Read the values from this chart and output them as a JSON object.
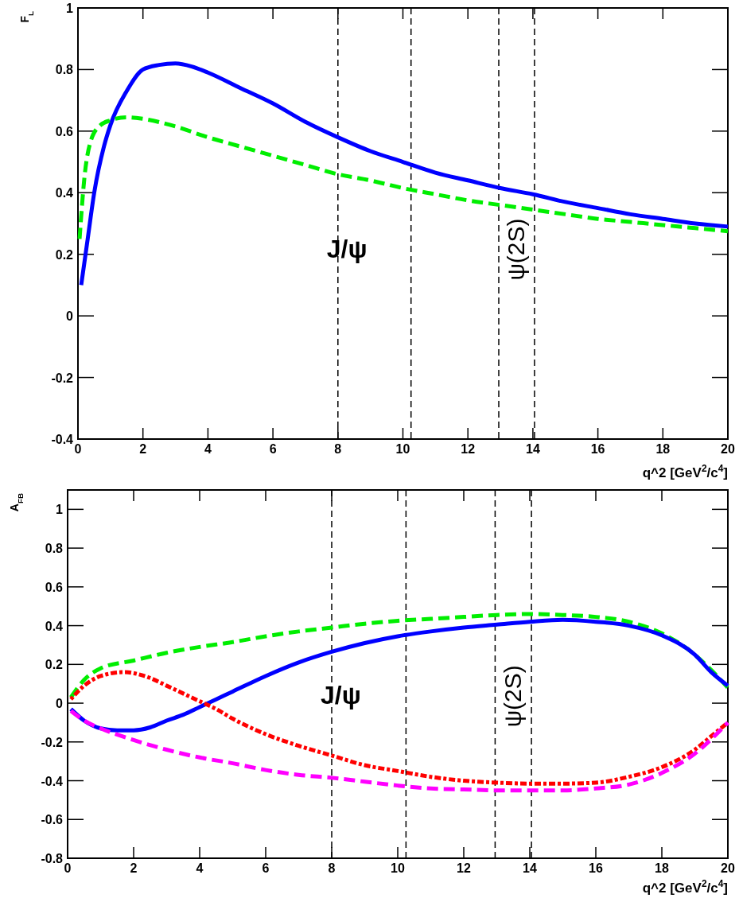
{
  "chart_data": [
    {
      "type": "line",
      "ylabel": "F$_{L}$",
      "xlabel": "q^2 [GeV$^{2}$/c$^{4}$]",
      "xlim": [
        0,
        20
      ],
      "xticks": [
        0,
        2,
        4,
        6,
        8,
        10,
        12,
        14,
        16,
        18,
        20
      ],
      "ylim": [
        -0.4,
        1
      ],
      "yticks": [
        -0.4,
        -0.2,
        0,
        0.2,
        0.4,
        0.6,
        0.8,
        1
      ],
      "ref_lines": [
        {
          "axis": "x",
          "value": 8,
          "label": "J/ψ",
          "line_style": "dashed",
          "color": "#000000"
        },
        {
          "axis": "x",
          "value": 10.25,
          "line_style": "dashed",
          "color": "#000000"
        },
        {
          "axis": "x",
          "value": 12.95,
          "label": "ψ(2S)",
          "line_style": "dashed",
          "color": "#000000"
        },
        {
          "axis": "x",
          "value": 14.05,
          "line_style": "dashed",
          "color": "#000000"
        }
      ],
      "series": [
        {
          "color": "#0000ff",
          "line_style": "solid",
          "x": [
            0.1,
            0.3,
            0.5,
            0.8,
            1,
            1.5,
            2,
            2.5,
            3,
            3.5,
            4,
            5,
            6,
            7,
            8,
            9,
            10,
            11,
            12,
            13,
            14,
            15,
            16,
            17,
            18,
            19,
            20
          ],
          "values": [
            0.1,
            0.25,
            0.4,
            0.55,
            0.62,
            0.73,
            0.8,
            0.815,
            0.82,
            0.81,
            0.79,
            0.74,
            0.69,
            0.63,
            0.58,
            0.535,
            0.5,
            0.465,
            0.44,
            0.415,
            0.395,
            0.37,
            0.35,
            0.33,
            0.315,
            0.3,
            0.29
          ]
        },
        {
          "color": "#00ee00",
          "line_style": "dashed",
          "x": [
            0.05,
            0.2,
            0.4,
            0.7,
            1,
            1.5,
            2,
            3,
            4,
            5,
            6,
            7,
            8,
            9,
            10,
            11,
            12,
            13,
            14,
            15,
            16,
            17,
            18,
            19,
            20
          ],
          "values": [
            0.25,
            0.45,
            0.57,
            0.62,
            0.635,
            0.645,
            0.64,
            0.615,
            0.58,
            0.55,
            0.52,
            0.49,
            0.46,
            0.44,
            0.415,
            0.395,
            0.375,
            0.36,
            0.345,
            0.33,
            0.315,
            0.305,
            0.295,
            0.285,
            0.275
          ]
        }
      ]
    },
    {
      "type": "line",
      "ylabel": "A$_{FB}$",
      "xlabel": "q^2 [GeV$^{2}$/c$^{4}$]",
      "xlim": [
        0,
        20
      ],
      "xticks": [
        0,
        2,
        4,
        6,
        8,
        10,
        12,
        14,
        16,
        18,
        20
      ],
      "ylim": [
        -0.8,
        1.1
      ],
      "yticks": [
        -0.8,
        -0.6,
        -0.4,
        -0.2,
        0,
        0.2,
        0.4,
        0.6,
        0.8,
        1
      ],
      "ref_lines": [
        {
          "axis": "x",
          "value": 8,
          "label": "J/ψ",
          "line_style": "dashed",
          "color": "#000000"
        },
        {
          "axis": "x",
          "value": 10.25,
          "line_style": "dashed",
          "color": "#000000"
        },
        {
          "axis": "x",
          "value": 12.95,
          "label": "ψ(2S)",
          "line_style": "dashed",
          "color": "#000000"
        },
        {
          "axis": "x",
          "value": 14.05,
          "line_style": "dashed",
          "color": "#000000"
        }
      ],
      "series": [
        {
          "color": "#00ee00",
          "line_style": "dashed",
          "x": [
            0.1,
            0.5,
            1,
            2,
            3,
            4,
            5,
            6,
            7,
            8,
            9,
            10,
            11,
            12,
            13,
            14,
            15,
            16,
            17,
            18,
            19,
            19.5,
            20
          ],
          "values": [
            0.03,
            0.12,
            0.18,
            0.22,
            0.26,
            0.29,
            0.315,
            0.345,
            0.37,
            0.39,
            0.41,
            0.425,
            0.435,
            0.445,
            0.455,
            0.46,
            0.455,
            0.445,
            0.42,
            0.36,
            0.25,
            0.17,
            0.08
          ]
        },
        {
          "color": "#0000ff",
          "line_style": "solid",
          "x": [
            0.1,
            0.5,
            1,
            1.5,
            2,
            2.5,
            3,
            3.5,
            4,
            4.5,
            5,
            6,
            7,
            8,
            9,
            10,
            11,
            12,
            13,
            14,
            15,
            16,
            17,
            18,
            19,
            19.5,
            20
          ],
          "values": [
            -0.03,
            -0.09,
            -0.13,
            -0.14,
            -0.14,
            -0.125,
            -0.09,
            -0.06,
            -0.02,
            0.02,
            0.06,
            0.14,
            0.21,
            0.265,
            0.31,
            0.345,
            0.37,
            0.39,
            0.405,
            0.42,
            0.43,
            0.42,
            0.4,
            0.35,
            0.25,
            0.16,
            0.09
          ]
        },
        {
          "color": "#ff0000",
          "line_style": "dotted",
          "x": [
            0.1,
            0.5,
            1,
            1.7,
            2.5,
            3,
            3.5,
            4,
            4.5,
            5,
            6,
            7,
            8,
            9,
            10,
            11,
            12,
            13,
            14,
            15,
            16,
            17,
            18,
            19,
            19.5,
            20
          ],
          "values": [
            0.02,
            0.09,
            0.14,
            0.16,
            0.13,
            0.09,
            0.05,
            0.01,
            -0.03,
            -0.08,
            -0.16,
            -0.22,
            -0.27,
            -0.32,
            -0.35,
            -0.38,
            -0.4,
            -0.41,
            -0.415,
            -0.415,
            -0.41,
            -0.38,
            -0.33,
            -0.24,
            -0.17,
            -0.1
          ]
        },
        {
          "color": "#ff00ff",
          "line_style": "dashed",
          "x": [
            0.1,
            0.5,
            1,
            2,
            3,
            4,
            5,
            6,
            7,
            8,
            9,
            10,
            11,
            12,
            13,
            14,
            15,
            16,
            17,
            18,
            19,
            20
          ],
          "values": [
            -0.04,
            -0.09,
            -0.13,
            -0.19,
            -0.24,
            -0.28,
            -0.31,
            -0.345,
            -0.37,
            -0.385,
            -0.405,
            -0.425,
            -0.44,
            -0.445,
            -0.45,
            -0.45,
            -0.45,
            -0.44,
            -0.42,
            -0.36,
            -0.26,
            -0.1
          ]
        }
      ]
    }
  ]
}
